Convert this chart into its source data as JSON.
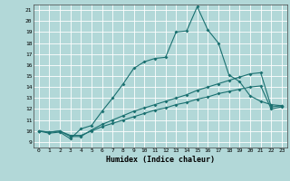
{
  "xlabel": "Humidex (Indice chaleur)",
  "background_color": "#b2d8d8",
  "line_color": "#1a7070",
  "grid_color": "#ffffff",
  "xlim": [
    -0.5,
    23.5
  ],
  "ylim": [
    8.5,
    21.5
  ],
  "xticks": [
    0,
    1,
    2,
    3,
    4,
    5,
    6,
    7,
    8,
    9,
    10,
    11,
    12,
    13,
    14,
    15,
    16,
    17,
    18,
    19,
    20,
    21,
    22,
    23
  ],
  "yticks": [
    9,
    10,
    11,
    12,
    13,
    14,
    15,
    16,
    17,
    18,
    19,
    20,
    21
  ],
  "series1_x": [
    0,
    1,
    2,
    3,
    4,
    5,
    6,
    7,
    8,
    9,
    10,
    11,
    12,
    13,
    14,
    15,
    16,
    17,
    18,
    19,
    20,
    21,
    22,
    23
  ],
  "series1_y": [
    10,
    9.8,
    9.9,
    9.3,
    10.2,
    10.5,
    11.8,
    13.0,
    14.3,
    15.7,
    16.3,
    16.6,
    16.7,
    19.0,
    19.1,
    21.3,
    19.2,
    18.0,
    15.1,
    14.5,
    13.2,
    12.7,
    12.4,
    12.3
  ],
  "series2_x": [
    0,
    1,
    2,
    3,
    4,
    5,
    6,
    7,
    8,
    9,
    10,
    11,
    12,
    13,
    14,
    15,
    16,
    17,
    18,
    19,
    20,
    21,
    22,
    23
  ],
  "series2_y": [
    10,
    9.9,
    10.0,
    9.5,
    9.5,
    10.1,
    10.6,
    11.0,
    11.4,
    11.8,
    12.1,
    12.4,
    12.7,
    13.0,
    13.3,
    13.7,
    14.0,
    14.3,
    14.6,
    14.9,
    15.2,
    15.3,
    12.2,
    12.3
  ],
  "series3_x": [
    0,
    1,
    2,
    3,
    4,
    5,
    6,
    7,
    8,
    9,
    10,
    11,
    12,
    13,
    14,
    15,
    16,
    17,
    18,
    19,
    20,
    21,
    22,
    23
  ],
  "series3_y": [
    10,
    9.9,
    10.0,
    9.6,
    9.6,
    10.0,
    10.4,
    10.7,
    11.0,
    11.3,
    11.6,
    11.9,
    12.1,
    12.4,
    12.6,
    12.9,
    13.1,
    13.4,
    13.6,
    13.8,
    14.0,
    14.1,
    12.0,
    12.2
  ]
}
